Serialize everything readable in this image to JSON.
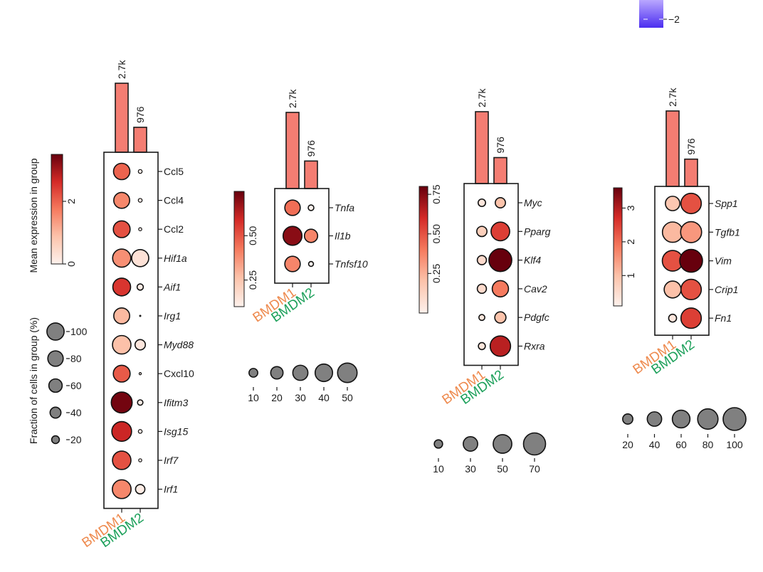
{
  "corner_legend": {
    "tick_label": "−2",
    "color": "#5b3cf0"
  },
  "colors": {
    "group1": "#ee8a4e",
    "group2": "#1ca05a",
    "bar": "#f47d72",
    "low": "#fcefe9",
    "high": "#67000d"
  },
  "groups": [
    "BMDM1",
    "BMDM2"
  ],
  "legend_titles": {
    "color": "Mean expression in group",
    "size": "Fraction of cells in group (%)"
  },
  "chart_data": [
    {
      "type": "dotplot",
      "id": "panel1",
      "groups": [
        "BMDM1",
        "BMDM2"
      ],
      "cell_counts": [
        {
          "label": "2.7k",
          "value": 2700
        },
        {
          "label": "976",
          "value": 976
        }
      ],
      "genes": [
        {
          "name": "Ccl5",
          "italic": false,
          "expr": [
            2.0,
            0.05
          ],
          "frac": [
            55,
            3
          ]
        },
        {
          "name": "Ccl4",
          "italic": false,
          "expr": [
            1.6,
            0.05
          ],
          "frac": [
            52,
            3
          ]
        },
        {
          "name": "Ccl2",
          "italic": false,
          "expr": [
            2.2,
            0.05
          ],
          "frac": [
            58,
            2
          ]
        },
        {
          "name": "Hif1a",
          "italic": true,
          "expr": [
            1.5,
            0.3
          ],
          "frac": [
            68,
            60
          ]
        },
        {
          "name": "Aif1",
          "italic": true,
          "expr": [
            2.5,
            0.1
          ],
          "frac": [
            65,
            8
          ]
        },
        {
          "name": "Irg1",
          "italic": true,
          "expr": [
            1.0,
            0.0
          ],
          "frac": [
            52,
            0
          ]
        },
        {
          "name": "Myd88",
          "italic": true,
          "expr": [
            0.9,
            0.2
          ],
          "frac": [
            70,
            22
          ]
        },
        {
          "name": "Cxcl10",
          "italic": false,
          "expr": [
            2.1,
            0.05
          ],
          "frac": [
            58,
            1
          ]
        },
        {
          "name": "Ifitm3",
          "italic": true,
          "expr": [
            3.4,
            0.1
          ],
          "frac": [
            90,
            6
          ]
        },
        {
          "name": "Isg15",
          "italic": true,
          "expr": [
            2.7,
            0.05
          ],
          "frac": [
            80,
            3
          ]
        },
        {
          "name": "Irf7",
          "italic": true,
          "expr": [
            2.2,
            0.05
          ],
          "frac": [
            70,
            2
          ]
        },
        {
          "name": "Irf1",
          "italic": true,
          "expr": [
            1.6,
            0.1
          ],
          "frac": [
            72,
            18
          ]
        }
      ],
      "colorbar": {
        "min": 0,
        "max": 3.5,
        "ticks": [
          0,
          2
        ]
      },
      "size_legend": {
        "values": [
          20,
          40,
          60,
          80,
          100
        ],
        "orientation": "vertical"
      }
    },
    {
      "type": "dotplot",
      "id": "panel2",
      "groups": [
        "BMDM1",
        "BMDM2"
      ],
      "cell_counts": [
        {
          "label": "2.7k",
          "value": 2700
        },
        {
          "label": "976",
          "value": 976
        }
      ],
      "genes": [
        {
          "name": "Tnfa",
          "italic": true,
          "expr": [
            0.45,
            0.05
          ],
          "frac": [
            30,
            4
          ]
        },
        {
          "name": "Il1b",
          "italic": true,
          "expr": [
            0.7,
            0.4
          ],
          "frac": [
            45,
            22
          ]
        },
        {
          "name": "Tnfsf10",
          "italic": true,
          "expr": [
            0.4,
            0.05
          ],
          "frac": [
            30,
            3
          ]
        }
      ],
      "colorbar": {
        "min": 0.1,
        "max": 0.75,
        "ticks": [
          0.25,
          0.5
        ]
      },
      "size_legend": {
        "values": [
          10,
          20,
          30,
          40,
          50
        ],
        "orientation": "horizontal"
      }
    },
    {
      "type": "dotplot",
      "id": "panel3",
      "groups": [
        "BMDM1",
        "BMDM2"
      ],
      "cell_counts": [
        {
          "label": "2.7k",
          "value": 2700
        },
        {
          "label": "976",
          "value": 976
        }
      ],
      "genes": [
        {
          "name": "Myc",
          "italic": true,
          "expr": [
            0.05,
            0.2
          ],
          "frac": [
            8,
            15
          ]
        },
        {
          "name": "Pparg",
          "italic": true,
          "expr": [
            0.15,
            0.55
          ],
          "frac": [
            15,
            50
          ]
        },
        {
          "name": "Klf4",
          "italic": true,
          "expr": [
            0.1,
            0.82
          ],
          "frac": [
            12,
            75
          ]
        },
        {
          "name": "Cav2",
          "italic": true,
          "expr": [
            0.1,
            0.4
          ],
          "frac": [
            12,
            38
          ]
        },
        {
          "name": "Pdgfc",
          "italic": true,
          "expr": [
            0.05,
            0.2
          ],
          "frac": [
            5,
            18
          ]
        },
        {
          "name": "Rxra",
          "italic": true,
          "expr": [
            0.05,
            0.65
          ],
          "frac": [
            7,
            60
          ]
        }
      ],
      "colorbar": {
        "min": 0,
        "max": 0.8,
        "ticks": [
          0.25,
          0.5,
          0.75
        ]
      },
      "size_legend": {
        "values": [
          10,
          30,
          50,
          70
        ],
        "orientation": "horizontal"
      }
    },
    {
      "type": "dotplot",
      "id": "panel4",
      "groups": [
        "BMDM1",
        "BMDM2"
      ],
      "cell_counts": [
        {
          "label": "2.7k",
          "value": 2700
        },
        {
          "label": "976",
          "value": 976
        }
      ],
      "genes": [
        {
          "name": "Spp1",
          "italic": true,
          "expr": [
            0.9,
            2.3
          ],
          "frac": [
            40,
            80
          ]
        },
        {
          "name": "Tgfb1",
          "italic": true,
          "expr": [
            1.1,
            1.5
          ],
          "frac": [
            80,
            85
          ]
        },
        {
          "name": "Vim",
          "italic": true,
          "expr": [
            2.3,
            3.6
          ],
          "frac": [
            82,
            100
          ]
        },
        {
          "name": "Crip1",
          "italic": true,
          "expr": [
            1.0,
            2.3
          ],
          "frac": [
            55,
            80
          ]
        },
        {
          "name": "Fn1",
          "italic": true,
          "expr": [
            0.3,
            2.5
          ],
          "frac": [
            12,
            80
          ]
        }
      ],
      "colorbar": {
        "min": 0.1,
        "max": 3.6,
        "ticks": [
          1,
          2,
          3
        ]
      },
      "size_legend": {
        "values": [
          20,
          40,
          60,
          80,
          100
        ],
        "orientation": "horizontal"
      }
    }
  ]
}
